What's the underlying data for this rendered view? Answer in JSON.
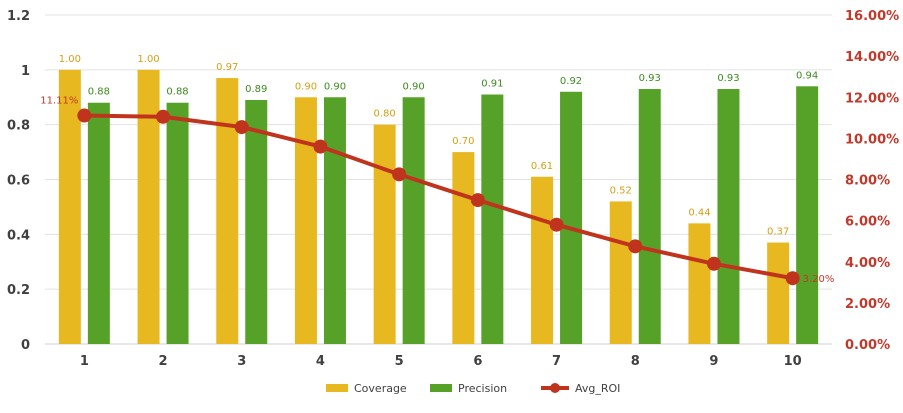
{
  "chart_data": {
    "type": "bar",
    "categories": [
      "1",
      "2",
      "3",
      "4",
      "5",
      "6",
      "7",
      "8",
      "9",
      "10"
    ],
    "series": [
      {
        "name": "Coverage",
        "kind": "bar",
        "axis": "left",
        "color": "#E8B820",
        "values": [
          1.0,
          1.0,
          0.97,
          0.9,
          0.8,
          0.7,
          0.61,
          0.52,
          0.44,
          0.37
        ],
        "labels": [
          "1.00",
          "1.00",
          "0.97",
          "0.90",
          "0.80",
          "0.70",
          "0.61",
          "0.52",
          "0.44",
          "0.37"
        ]
      },
      {
        "name": "Precision",
        "kind": "bar",
        "axis": "left",
        "color": "#56A228",
        "values": [
          0.88,
          0.88,
          0.89,
          0.9,
          0.9,
          0.91,
          0.92,
          0.93,
          0.93,
          0.94
        ],
        "labels": [
          "0.88",
          "0.88",
          "0.89",
          "0.90",
          "0.90",
          "0.91",
          "0.92",
          "0.93",
          "0.93",
          "0.94"
        ]
      },
      {
        "name": "Avg_ROI",
        "kind": "line",
        "axis": "right",
        "color": "#C0341D",
        "values": [
          11.11,
          11.05,
          10.55,
          9.6,
          8.25,
          7.0,
          5.8,
          4.75,
          3.9,
          3.2
        ],
        "labels": [
          "11.11%",
          "",
          "",
          "",
          "",
          "",
          "",
          "",
          "",
          "3.20%"
        ]
      }
    ],
    "left_axis": {
      "ylim": [
        0,
        1.2
      ],
      "ticks": [
        "0",
        "0.2",
        "0.4",
        "0.6",
        "0.8",
        "1",
        "1.2"
      ]
    },
    "right_axis": {
      "ylim": [
        0,
        16
      ],
      "ticks": [
        "0.00%",
        "2.00%",
        "4.00%",
        "6.00%",
        "8.00%",
        "10.00%",
        "12.00%",
        "14.00%",
        "16.00%"
      ]
    },
    "grid": "horizontal",
    "legend": "bottom-center"
  }
}
